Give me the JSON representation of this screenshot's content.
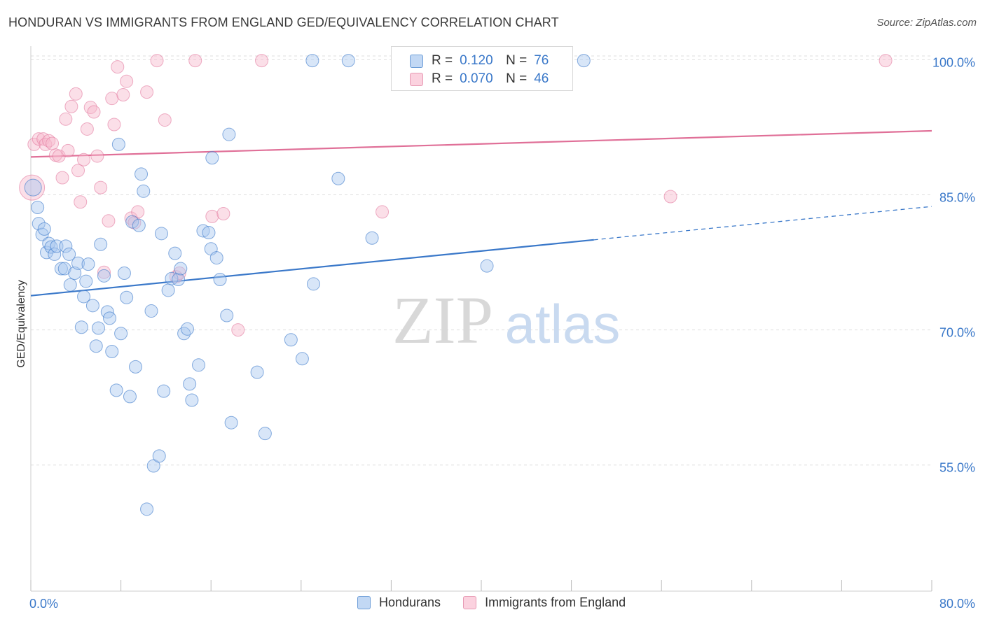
{
  "title": "HONDURAN VS IMMIGRANTS FROM ENGLAND GED/EQUIVALENCY CORRELATION CHART",
  "source": "Source: ZipAtlas.com",
  "watermark": {
    "zip": "ZIP",
    "atlas": "atlas"
  },
  "legend": {
    "r_label": "R =",
    "n_label": "N =",
    "series1": {
      "r": "0.120",
      "n": "76"
    },
    "series2": {
      "r": "0.070",
      "n": "46"
    }
  },
  "bottom_legend": {
    "series1": "Hondurans",
    "series2": "Immigrants from England"
  },
  "colors": {
    "blue": "#3a78c9",
    "blue_fill": "#a9c8ef",
    "pink": "#e07098",
    "pink_fill": "#f6b8cc",
    "grid": "#dddddd",
    "tick_label": "#3a78c9"
  },
  "chart_data": {
    "type": "scatter",
    "title": "HONDURAN VS IMMIGRANTS FROM ENGLAND GED/EQUIVALENCY CORRELATION CHART",
    "xlabel": "",
    "ylabel": "GED/Equivalency",
    "xlim": [
      0,
      80
    ],
    "ylim": [
      41,
      101.5
    ],
    "x_tick_labels": [
      "0.0%",
      "80.0%"
    ],
    "y_ticks": [
      55,
      70,
      85,
      100
    ],
    "y_tick_labels": [
      "55.0%",
      "70.0%",
      "85.0%",
      "100.0%"
    ],
    "grid": true,
    "legend_position": "top-center",
    "series": [
      {
        "name": "Hondurans",
        "color": "#3a78c9",
        "trend": {
          "x": [
            0,
            50
          ],
          "y": [
            73.8,
            80.0
          ],
          "dashed_to": [
            80,
            83.7
          ]
        },
        "points": [
          [
            0.2,
            85.8
          ],
          [
            0.6,
            83.6
          ],
          [
            0.7,
            81.8
          ],
          [
            1.0,
            80.6
          ],
          [
            1.2,
            81.2
          ],
          [
            1.4,
            78.6
          ],
          [
            1.6,
            79.6
          ],
          [
            1.8,
            79.2
          ],
          [
            2.1,
            78.4
          ],
          [
            2.3,
            79.3
          ],
          [
            2.7,
            76.8
          ],
          [
            3.0,
            76.8
          ],
          [
            3.1,
            79.3
          ],
          [
            3.4,
            78.4
          ],
          [
            3.5,
            75.0
          ],
          [
            3.9,
            76.3
          ],
          [
            4.2,
            77.4
          ],
          [
            4.5,
            70.3
          ],
          [
            4.7,
            73.7
          ],
          [
            4.9,
            75.4
          ],
          [
            5.1,
            77.3
          ],
          [
            5.5,
            72.7
          ],
          [
            5.8,
            68.2
          ],
          [
            6.0,
            70.2
          ],
          [
            6.2,
            79.5
          ],
          [
            6.5,
            76.0
          ],
          [
            6.8,
            72.0
          ],
          [
            7.0,
            71.3
          ],
          [
            7.2,
            67.6
          ],
          [
            7.6,
            63.3
          ],
          [
            7.8,
            90.6
          ],
          [
            8.0,
            69.6
          ],
          [
            8.3,
            76.3
          ],
          [
            8.5,
            73.6
          ],
          [
            8.8,
            62.6
          ],
          [
            9.0,
            82.0
          ],
          [
            9.3,
            65.9
          ],
          [
            9.6,
            81.6
          ],
          [
            9.8,
            87.3
          ],
          [
            10.0,
            85.4
          ],
          [
            10.3,
            50.1
          ],
          [
            10.7,
            72.1
          ],
          [
            10.9,
            54.9
          ],
          [
            11.4,
            56.0
          ],
          [
            11.6,
            80.7
          ],
          [
            11.8,
            63.2
          ],
          [
            12.2,
            74.4
          ],
          [
            12.5,
            75.7
          ],
          [
            12.8,
            78.5
          ],
          [
            13.1,
            75.6
          ],
          [
            13.3,
            76.8
          ],
          [
            13.6,
            69.6
          ],
          [
            13.9,
            70.1
          ],
          [
            14.1,
            64.0
          ],
          [
            14.3,
            62.2
          ],
          [
            14.9,
            66.1
          ],
          [
            15.3,
            81.0
          ],
          [
            15.8,
            80.8
          ],
          [
            16.0,
            79.0
          ],
          [
            16.1,
            89.1
          ],
          [
            16.5,
            78.0
          ],
          [
            16.8,
            75.6
          ],
          [
            17.4,
            71.6
          ],
          [
            17.6,
            91.7
          ],
          [
            17.8,
            59.7
          ],
          [
            20.1,
            65.3
          ],
          [
            20.8,
            58.5
          ],
          [
            23.1,
            68.9
          ],
          [
            24.1,
            66.8
          ],
          [
            25.1,
            75.1
          ],
          [
            27.3,
            86.8
          ],
          [
            28.2,
            99.9
          ],
          [
            30.3,
            80.2
          ],
          [
            40.5,
            77.1
          ],
          [
            49.1,
            99.9
          ],
          [
            25.0,
            99.9
          ]
        ]
      },
      {
        "name": "Immigrants from England",
        "color": "#e07098",
        "trend": {
          "x": [
            0,
            80
          ],
          "y": [
            89.2,
            92.1
          ]
        },
        "points": [
          [
            0.1,
            85.8
          ],
          [
            0.3,
            90.6
          ],
          [
            0.7,
            91.2
          ],
          [
            1.1,
            91.2
          ],
          [
            1.3,
            90.6
          ],
          [
            1.6,
            91.0
          ],
          [
            1.9,
            90.7
          ],
          [
            2.2,
            89.4
          ],
          [
            2.5,
            89.3
          ],
          [
            2.8,
            86.9
          ],
          [
            3.1,
            93.4
          ],
          [
            3.3,
            89.9
          ],
          [
            3.6,
            94.8
          ],
          [
            4.0,
            96.2
          ],
          [
            4.2,
            87.7
          ],
          [
            4.4,
            84.2
          ],
          [
            4.7,
            88.9
          ],
          [
            5.0,
            92.3
          ],
          [
            5.3,
            94.7
          ],
          [
            5.6,
            94.2
          ],
          [
            5.9,
            89.3
          ],
          [
            6.2,
            85.8
          ],
          [
            6.5,
            76.4
          ],
          [
            6.9,
            82.1
          ],
          [
            7.2,
            95.7
          ],
          [
            7.4,
            92.8
          ],
          [
            7.7,
            99.2
          ],
          [
            8.2,
            96.1
          ],
          [
            8.5,
            97.6
          ],
          [
            8.9,
            82.4
          ],
          [
            9.2,
            81.9
          ],
          [
            9.5,
            83.1
          ],
          [
            10.3,
            96.4
          ],
          [
            11.2,
            99.9
          ],
          [
            11.9,
            93.3
          ],
          [
            12.9,
            75.9
          ],
          [
            13.2,
            76.3
          ],
          [
            14.6,
            99.9
          ],
          [
            16.1,
            82.6
          ],
          [
            17.1,
            82.9
          ],
          [
            18.4,
            70.0
          ],
          [
            20.5,
            99.9
          ],
          [
            31.2,
            83.1
          ],
          [
            33.2,
            99.9
          ],
          [
            56.8,
            84.8
          ],
          [
            75.9,
            99.9
          ]
        ]
      }
    ]
  }
}
